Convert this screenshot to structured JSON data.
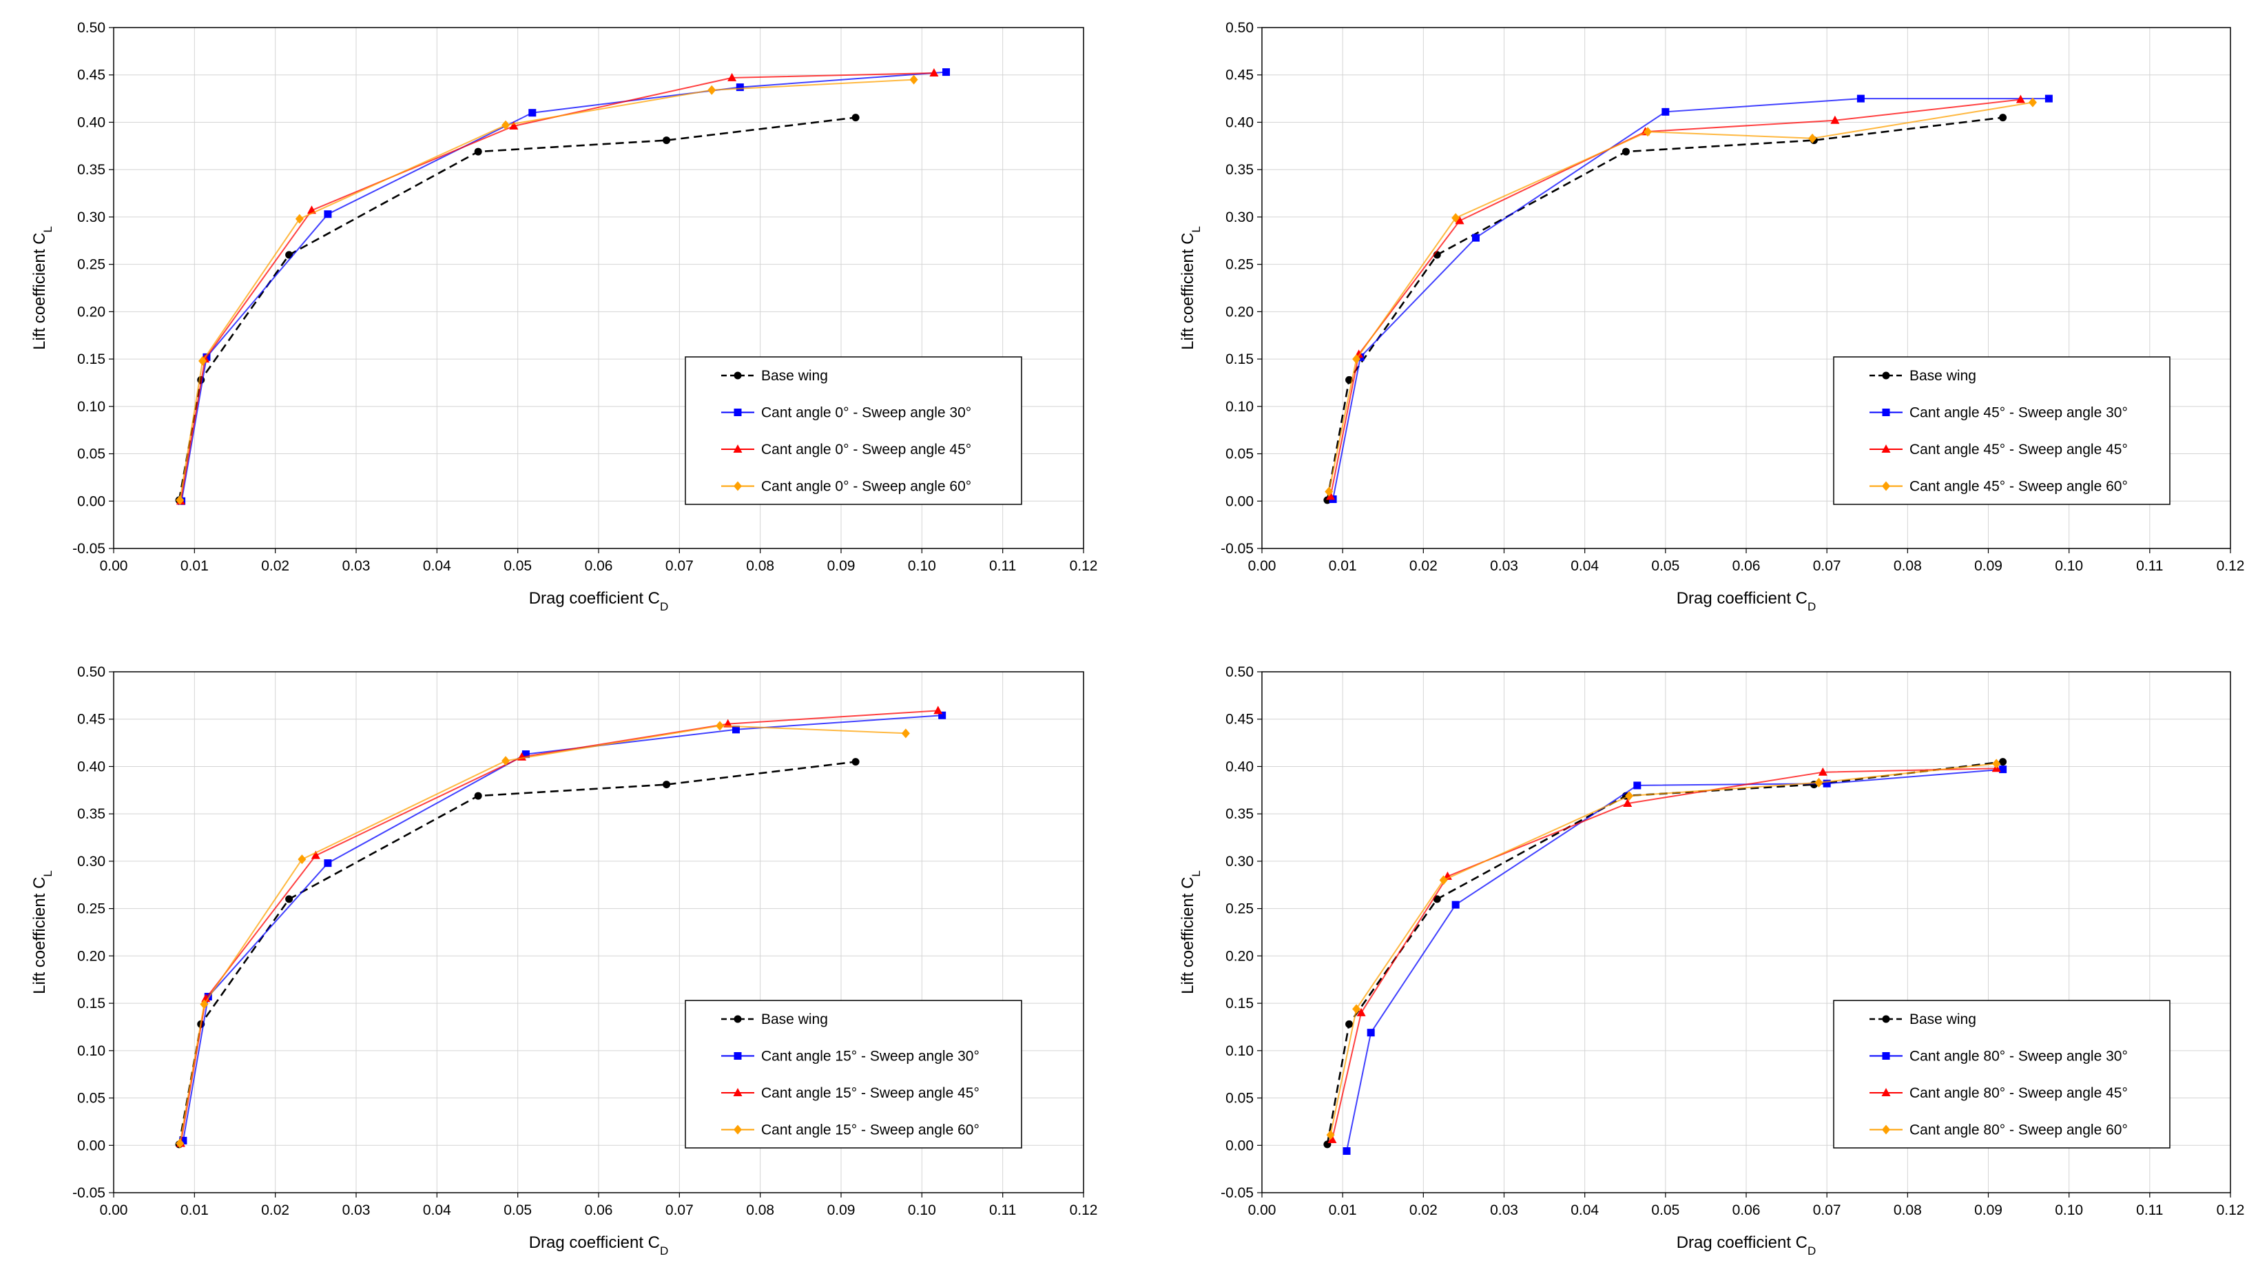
{
  "chart_data": [
    {
      "type": "line",
      "title": "",
      "xlabel": "Drag coefficient C",
      "xlabel_sub": "D",
      "ylabel": "Lift coefficient C",
      "ylabel_sub": "L",
      "xlim": [
        0.0,
        0.12
      ],
      "ylim": [
        -0.05,
        0.5
      ],
      "xticks": [
        "0.00",
        "0.01",
        "0.02",
        "0.03",
        "0.04",
        "0.05",
        "0.06",
        "0.07",
        "0.08",
        "0.09",
        "0.10",
        "0.11",
        "0.12"
      ],
      "yticks": [
        "-0.05",
        "0.00",
        "0.05",
        "0.10",
        "0.15",
        "0.20",
        "0.25",
        "0.30",
        "0.35",
        "0.40",
        "0.45",
        "0.50"
      ],
      "grid": true,
      "legend_position": "bottom-right",
      "series": [
        {
          "name": "Base wing",
          "color": "#000000",
          "marker": "circle",
          "dashed": true,
          "x": [
            0.0081,
            0.0108,
            0.0217,
            0.0451,
            0.0684,
            0.0918
          ],
          "y": [
            0.001,
            0.128,
            0.26,
            0.369,
            0.381,
            0.405
          ]
        },
        {
          "name": "Cant angle 0° - Sweep angle 30°",
          "color": "#0000ff",
          "marker": "square",
          "dashed": false,
          "x": [
            0.0084,
            0.0115,
            0.0265,
            0.0518,
            0.0775,
            0.103
          ],
          "y": [
            0.0,
            0.152,
            0.303,
            0.41,
            0.437,
            0.453
          ]
        },
        {
          "name": "Cant angle 0° - Sweep angle 45°",
          "color": "#ff0000",
          "marker": "triangle",
          "dashed": false,
          "x": [
            0.0083,
            0.0113,
            0.0245,
            0.0495,
            0.0765,
            0.1015
          ],
          "y": [
            0.0,
            0.15,
            0.307,
            0.396,
            0.447,
            0.452
          ]
        },
        {
          "name": "Cant angle 0° - Sweep angle 60°",
          "color": "#ffa000",
          "marker": "diamond",
          "dashed": false,
          "x": [
            0.0082,
            0.011,
            0.023,
            0.0485,
            0.074,
            0.099
          ],
          "y": [
            0.001,
            0.148,
            0.298,
            0.397,
            0.434,
            0.445
          ]
        }
      ]
    },
    {
      "type": "line",
      "title": "",
      "xlabel": "Drag coefficient C",
      "xlabel_sub": "D",
      "ylabel": "Lift coefficient C",
      "ylabel_sub": "L",
      "xlim": [
        0.0,
        0.12
      ],
      "ylim": [
        -0.05,
        0.5
      ],
      "xticks": [
        "0.00",
        "0.01",
        "0.02",
        "0.03",
        "0.04",
        "0.05",
        "0.06",
        "0.07",
        "0.08",
        "0.09",
        "0.10",
        "0.11",
        "0.12"
      ],
      "yticks": [
        "-0.05",
        "0.00",
        "0.05",
        "0.10",
        "0.15",
        "0.20",
        "0.25",
        "0.30",
        "0.35",
        "0.40",
        "0.45",
        "0.50"
      ],
      "grid": true,
      "legend_position": "bottom-right",
      "series": [
        {
          "name": "Base wing",
          "color": "#000000",
          "marker": "circle",
          "dashed": true,
          "x": [
            0.0081,
            0.0108,
            0.0217,
            0.0451,
            0.0684,
            0.0918
          ],
          "y": [
            0.001,
            0.128,
            0.26,
            0.369,
            0.381,
            0.405
          ]
        },
        {
          "name": "Cant angle 45° - Sweep angle 30°",
          "color": "#0000ff",
          "marker": "square",
          "dashed": false,
          "x": [
            0.0088,
            0.0122,
            0.0265,
            0.05,
            0.0742,
            0.0975
          ],
          "y": [
            0.002,
            0.152,
            0.278,
            0.411,
            0.425,
            0.425
          ]
        },
        {
          "name": "Cant angle 45° - Sweep angle 45°",
          "color": "#ff0000",
          "marker": "triangle",
          "dashed": false,
          "x": [
            0.0085,
            0.012,
            0.0245,
            0.0475,
            0.071,
            0.094
          ],
          "y": [
            0.005,
            0.155,
            0.296,
            0.39,
            0.402,
            0.424
          ]
        },
        {
          "name": "Cant angle 45° - Sweep angle 60°",
          "color": "#ffa000",
          "marker": "diamond",
          "dashed": false,
          "x": [
            0.0083,
            0.0117,
            0.024,
            0.0478,
            0.0682,
            0.0955
          ],
          "y": [
            0.01,
            0.15,
            0.299,
            0.39,
            0.383,
            0.421
          ]
        }
      ]
    },
    {
      "type": "line",
      "title": "",
      "xlabel": "Drag coefficient C",
      "xlabel_sub": "D",
      "ylabel": "Lift coefficient C",
      "ylabel_sub": "L",
      "xlim": [
        0.0,
        0.12
      ],
      "ylim": [
        -0.05,
        0.5
      ],
      "xticks": [
        "0.00",
        "0.01",
        "0.02",
        "0.03",
        "0.04",
        "0.05",
        "0.06",
        "0.07",
        "0.08",
        "0.09",
        "0.10",
        "0.11",
        "0.12"
      ],
      "yticks": [
        "-0.05",
        "0.00",
        "0.05",
        "0.10",
        "0.15",
        "0.20",
        "0.25",
        "0.30",
        "0.35",
        "0.40",
        "0.45",
        "0.50"
      ],
      "grid": true,
      "legend_position": "bottom-right",
      "series": [
        {
          "name": "Base wing",
          "color": "#000000",
          "marker": "circle",
          "dashed": true,
          "x": [
            0.0081,
            0.0108,
            0.0217,
            0.0451,
            0.0684,
            0.0918
          ],
          "y": [
            0.001,
            0.128,
            0.26,
            0.369,
            0.381,
            0.405
          ]
        },
        {
          "name": "Cant angle 15° - Sweep angle 30°",
          "color": "#0000ff",
          "marker": "square",
          "dashed": false,
          "x": [
            0.0086,
            0.0117,
            0.0265,
            0.051,
            0.077,
            0.1025
          ],
          "y": [
            0.005,
            0.157,
            0.298,
            0.413,
            0.439,
            0.454
          ]
        },
        {
          "name": "Cant angle 15° - Sweep angle 45°",
          "color": "#ff0000",
          "marker": "triangle",
          "dashed": false,
          "x": [
            0.0083,
            0.0114,
            0.025,
            0.0505,
            0.076,
            0.102
          ],
          "y": [
            0.002,
            0.155,
            0.306,
            0.41,
            0.445,
            0.459
          ]
        },
        {
          "name": "Cant angle 15° - Sweep angle 60°",
          "color": "#ffa000",
          "marker": "diamond",
          "dashed": false,
          "x": [
            0.0082,
            0.0112,
            0.0233,
            0.0485,
            0.075,
            0.098
          ],
          "y": [
            0.002,
            0.149,
            0.302,
            0.406,
            0.443,
            0.435
          ]
        }
      ]
    },
    {
      "type": "line",
      "title": "",
      "xlabel": "Drag coefficient C",
      "xlabel_sub": "D",
      "ylabel": "Lift coefficient C",
      "ylabel_sub": "L",
      "xlim": [
        0.0,
        0.12
      ],
      "ylim": [
        -0.05,
        0.5
      ],
      "xticks": [
        "0.00",
        "0.01",
        "0.02",
        "0.03",
        "0.04",
        "0.05",
        "0.06",
        "0.07",
        "0.08",
        "0.09",
        "0.10",
        "0.11",
        "0.12"
      ],
      "yticks": [
        "-0.05",
        "0.00",
        "0.05",
        "0.10",
        "0.15",
        "0.20",
        "0.25",
        "0.30",
        "0.35",
        "0.40",
        "0.45",
        "0.50"
      ],
      "grid": true,
      "legend_position": "bottom-right",
      "series": [
        {
          "name": "Base wing",
          "color": "#000000",
          "marker": "circle",
          "dashed": true,
          "x": [
            0.0081,
            0.0108,
            0.0217,
            0.0451,
            0.0684,
            0.0918
          ],
          "y": [
            0.001,
            0.128,
            0.26,
            0.369,
            0.381,
            0.405
          ]
        },
        {
          "name": "Cant angle 80° - Sweep angle 30°",
          "color": "#0000ff",
          "marker": "square",
          "dashed": false,
          "x": [
            0.0105,
            0.0135,
            0.024,
            0.0465,
            0.07,
            0.0918
          ],
          "y": [
            -0.006,
            0.119,
            0.254,
            0.38,
            0.382,
            0.397
          ]
        },
        {
          "name": "Cant angle 80° - Sweep angle 45°",
          "color": "#ff0000",
          "marker": "triangle",
          "dashed": false,
          "x": [
            0.0087,
            0.0123,
            0.023,
            0.0453,
            0.0695,
            0.091
          ],
          "y": [
            0.006,
            0.14,
            0.284,
            0.361,
            0.394,
            0.398
          ]
        },
        {
          "name": "Cant angle 80° - Sweep angle 60°",
          "color": "#ffa000",
          "marker": "diamond",
          "dashed": false,
          "x": [
            0.0085,
            0.0117,
            0.0225,
            0.0455,
            0.069,
            0.091
          ],
          "y": [
            0.011,
            0.144,
            0.28,
            0.369,
            0.383,
            0.403
          ]
        }
      ]
    }
  ]
}
